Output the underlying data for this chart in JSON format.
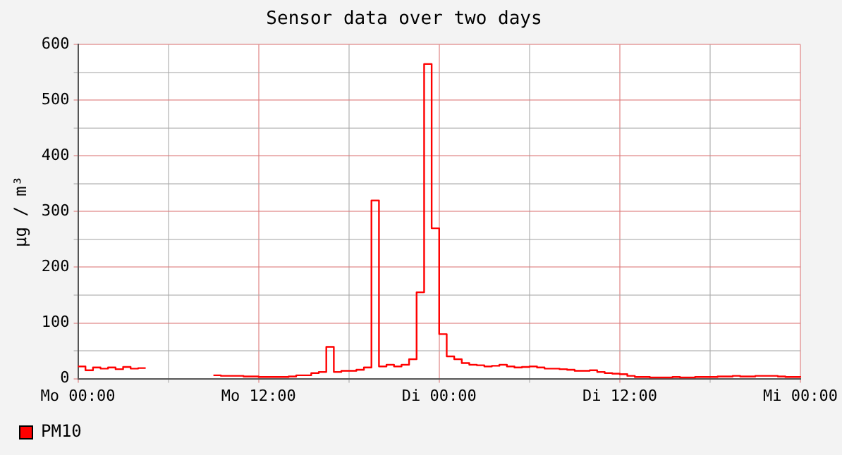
{
  "chart_data": {
    "type": "step",
    "title": "Sensor data over two days",
    "ylabel": "µg / m³",
    "categories": [
      "Mo 00:00",
      null,
      null,
      null,
      null,
      null,
      null,
      null,
      null,
      null,
      null,
      null,
      null,
      null,
      null,
      null,
      null,
      null,
      null,
      null,
      null,
      null,
      null,
      null,
      "Mo 12:00",
      null,
      null,
      null,
      null,
      null,
      null,
      null,
      null,
      null,
      null,
      null,
      null,
      null,
      null,
      null,
      null,
      null,
      null,
      null,
      null,
      null,
      null,
      null,
      "Di 00:00",
      null,
      null,
      null,
      null,
      null,
      null,
      null,
      null,
      null,
      null,
      null,
      null,
      null,
      null,
      null,
      null,
      null,
      null,
      null,
      null,
      null,
      null,
      null,
      "Di 12:00",
      null,
      null,
      null,
      null,
      null,
      null,
      null,
      null,
      null,
      null,
      null,
      null,
      null,
      null,
      null,
      null,
      null,
      null,
      null,
      null,
      null,
      null,
      null,
      "Mi 00:00"
    ],
    "series": [
      {
        "name": "PM10",
        "color": "#ff0000",
        "values": [
          22,
          15,
          20,
          18,
          20,
          17,
          21,
          18,
          19,
          19,
          null,
          null,
          null,
          null,
          null,
          null,
          null,
          null,
          6,
          5,
          5,
          5,
          4,
          4,
          3,
          3,
          3,
          3,
          4,
          6,
          6,
          10,
          12,
          57,
          12,
          14,
          14,
          16,
          20,
          320,
          22,
          25,
          22,
          25,
          35,
          155,
          565,
          270,
          80,
          40,
          35,
          28,
          25,
          24,
          22,
          23,
          25,
          22,
          20,
          21,
          22,
          20,
          18,
          18,
          17,
          16,
          14,
          14,
          15,
          12,
          10,
          9,
          8,
          5,
          3,
          3,
          2,
          2,
          2,
          3,
          2,
          2,
          3,
          3,
          3,
          4,
          4,
          5,
          4,
          4,
          5,
          5,
          5,
          4,
          3,
          3,
          2
        ]
      }
    ],
    "ylim": [
      0,
      600
    ],
    "yticks": [
      0,
      {
        "value": 50,
        "label": null
      },
      100,
      {
        "value": 150,
        "label": null
      },
      200,
      {
        "value": 250,
        "label": null
      },
      300,
      {
        "value": 350,
        "label": null
      },
      400,
      {
        "value": 450,
        "label": null
      },
      500,
      {
        "value": 550,
        "label": null
      },
      600
    ],
    "grid": true,
    "legend": "bottom left",
    "marker": "none",
    "line_style": "solid"
  }
}
